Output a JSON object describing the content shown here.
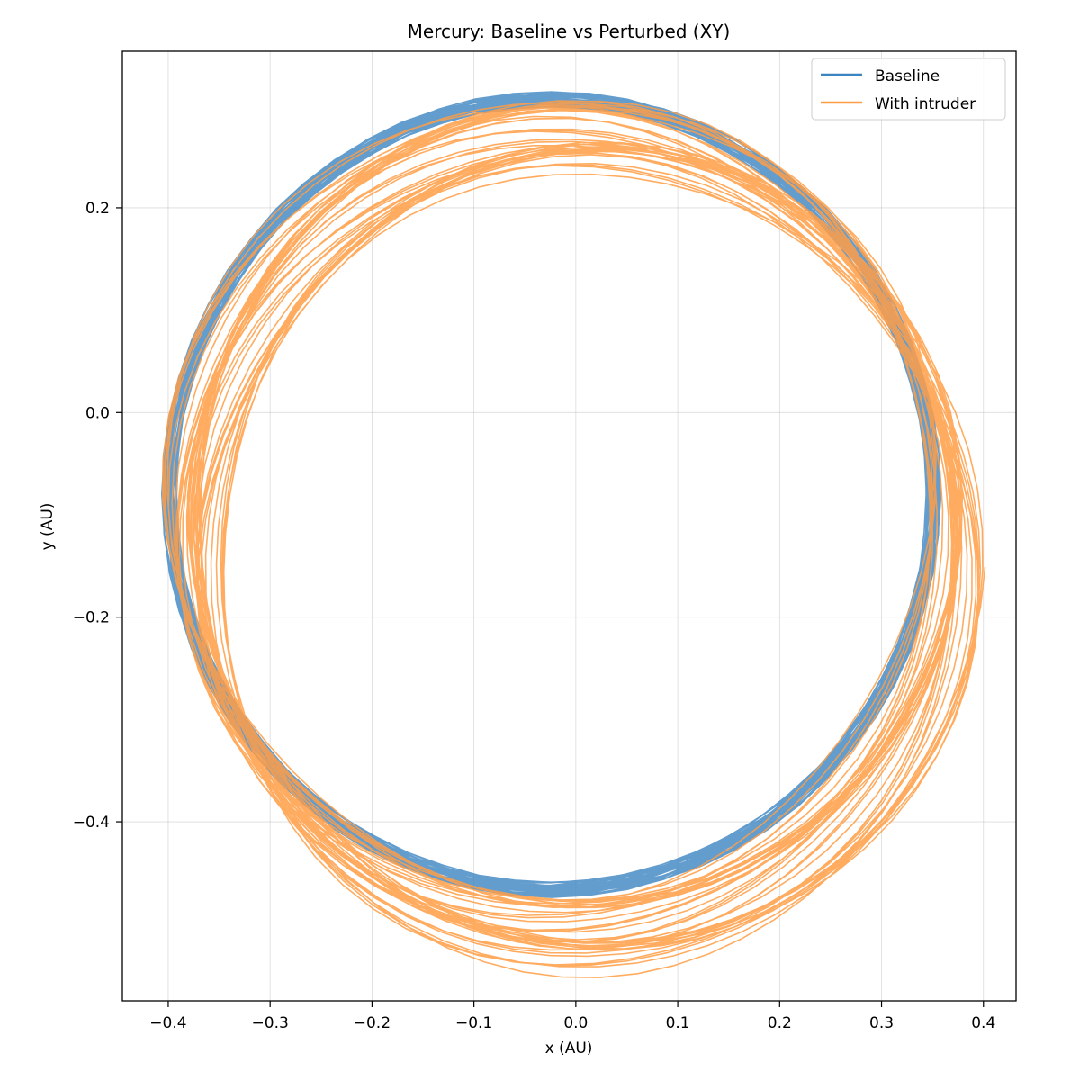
{
  "chart_data": {
    "type": "line",
    "title": "Mercury: Baseline vs Perturbed (XY)",
    "xlabel": "x (AU)",
    "ylabel": "y (AU)",
    "xlim": [
      -0.445,
      0.432
    ],
    "ylim": [
      -0.575,
      0.353
    ],
    "xticks": [
      -0.4,
      -0.3,
      -0.2,
      -0.1,
      0.0,
      0.1,
      0.2,
      0.3,
      0.4
    ],
    "xtick_labels": [
      "−0.4",
      "−0.3",
      "−0.2",
      "−0.1",
      "0.0",
      "0.1",
      "0.2",
      "0.3",
      "0.4"
    ],
    "yticks": [
      0.2,
      0.0,
      -0.2,
      -0.4
    ],
    "ytick_labels": [
      "0.2",
      "0.0",
      "−0.2",
      "−0.4"
    ],
    "grid": true,
    "legend": "top-right",
    "colors": {
      "baseline": "#3c85c0",
      "intruder": "#ff9d45",
      "grid": "#b0b0b0"
    },
    "series": [
      {
        "name": "Baseline",
        "orbit": {
          "center_x": -0.024,
          "center_y": -0.08,
          "radius_mean": 0.375,
          "radius_spread": 0.0075,
          "revolutions": 40,
          "points_per_rev": 64
        }
      },
      {
        "name": "With intruder",
        "orbit": {
          "center_x_start": -0.024,
          "center_x_end": 0.02,
          "center_y_start": -0.08,
          "center_y_end": -0.155,
          "radius_start": 0.375,
          "radius_end": 0.375,
          "revolutions": 40,
          "points_per_rev": 64
        }
      }
    ]
  }
}
